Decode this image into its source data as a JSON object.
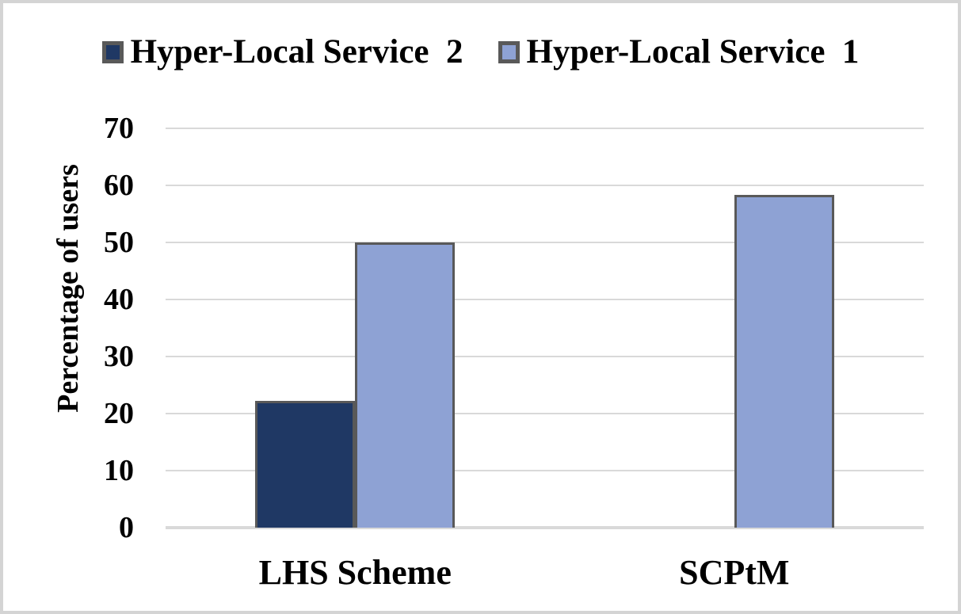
{
  "chart_data": {
    "type": "bar",
    "title": "",
    "xlabel": "",
    "ylabel": "Percentage of users",
    "categories": [
      "LHS Scheme",
      "SCPtM"
    ],
    "series": [
      {
        "name": "Hyper-Local Service  2",
        "color": "#1F3864",
        "values": [
          22.2,
          null
        ]
      },
      {
        "name": "Hyper-Local Service  1",
        "color": "#8EA2D4",
        "values": [
          50,
          58.3
        ]
      }
    ],
    "ylim": [
      0,
      70
    ],
    "yticks": [
      0,
      10,
      20,
      30,
      40,
      50,
      60,
      70
    ],
    "grid": "horizontal",
    "legend_position": "top",
    "colors": {
      "bar_border": "#595959",
      "legend_swatch_border": "#595959",
      "gridline": "#D9D9D9",
      "axis_line": "#D9D9D9",
      "text": "#000000",
      "background": "#FFFFFF",
      "frame_border": "#D4D4D4"
    }
  }
}
